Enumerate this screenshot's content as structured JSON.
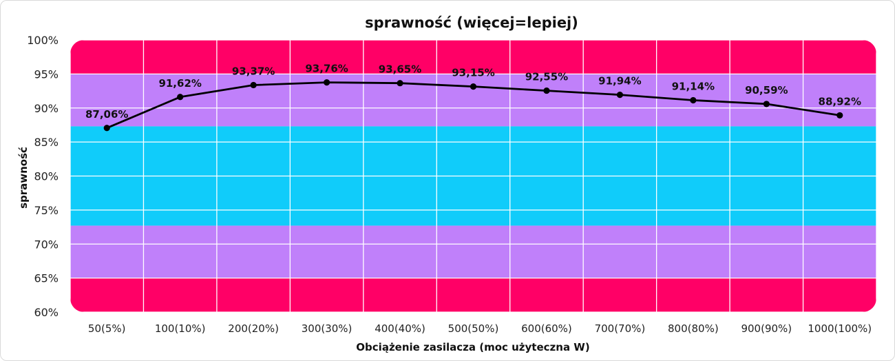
{
  "chart_data": {
    "type": "line",
    "title": "sprawność (więcej=lepiej)",
    "xlabel": "Obciążenie zasilacza (moc użyteczna W)",
    "ylabel": "sprawność",
    "categories": [
      "50(5%)",
      "100(10%)",
      "200(20%)",
      "300(30%)",
      "400(40%)",
      "500(50%)",
      "600(60%)",
      "700(70%)",
      "800(80%)",
      "900(90%)",
      "1000(100%)"
    ],
    "series": [
      {
        "values": [
          87.06,
          91.62,
          93.37,
          93.76,
          93.65,
          93.15,
          92.55,
          91.94,
          91.14,
          90.59,
          88.92
        ],
        "labels": [
          "87,06%",
          "91,62%",
          "93,37%",
          "93,76%",
          "93,65%",
          "93,15%",
          "92,55%",
          "91,94%",
          "91,14%",
          "90,59%",
          "88,92%"
        ]
      }
    ],
    "ylim": [
      60,
      100
    ],
    "yticks": [
      {
        "value": 100,
        "label": "100%"
      },
      {
        "value": 95,
        "label": "95%"
      },
      {
        "value": 90,
        "label": "90%"
      },
      {
        "value": 85,
        "label": "85%"
      },
      {
        "value": 80,
        "label": "80%"
      },
      {
        "value": 75,
        "label": "75%"
      },
      {
        "value": 70,
        "label": "70%"
      },
      {
        "value": 65,
        "label": "65%"
      },
      {
        "value": 60,
        "label": "60%"
      }
    ],
    "grid": true,
    "legend": "none",
    "bands": [
      {
        "from": 95,
        "to": 100,
        "color": "#ff0066"
      },
      {
        "from": 87.3,
        "to": 95,
        "color": "#c080fa"
      },
      {
        "from": 72.7,
        "to": 87.3,
        "color": "#10ccfa"
      },
      {
        "from": 65,
        "to": 72.7,
        "color": "#c080fa"
      },
      {
        "from": 60,
        "to": 65,
        "color": "#ff0066"
      }
    ],
    "line_color": "#000000",
    "grid_color": "#ffffff"
  }
}
